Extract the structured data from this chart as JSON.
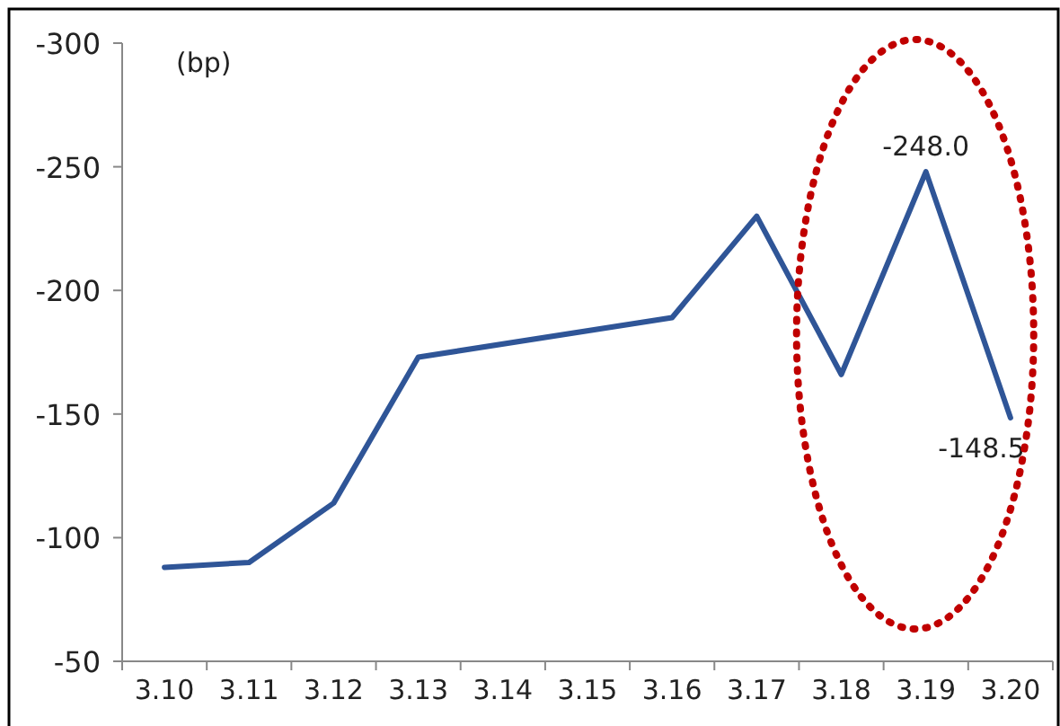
{
  "chart_data": {
    "type": "line",
    "ylabel": "(bp)",
    "categories": [
      "3.10",
      "3.11",
      "3.12",
      "3.13",
      "3.14",
      "3.15",
      "3.16",
      "3.17",
      "3.18",
      "3.19",
      "3.20"
    ],
    "series": [
      {
        "color": "#2f5597",
        "values": [
          -88,
          -90,
          -114,
          -173,
          null,
          null,
          -189,
          -230,
          -166,
          -248.0,
          -148.5
        ],
        "value_labels": [
          null,
          null,
          null,
          null,
          null,
          null,
          null,
          null,
          null,
          "-248.0",
          "-148.5"
        ]
      }
    ],
    "ylim": [
      -50,
      -300
    ],
    "yticks": [
      -50,
      -100,
      -150,
      -200,
      -250,
      -300
    ],
    "grid": false,
    "marker": "none",
    "line_style": "solid"
  }
}
